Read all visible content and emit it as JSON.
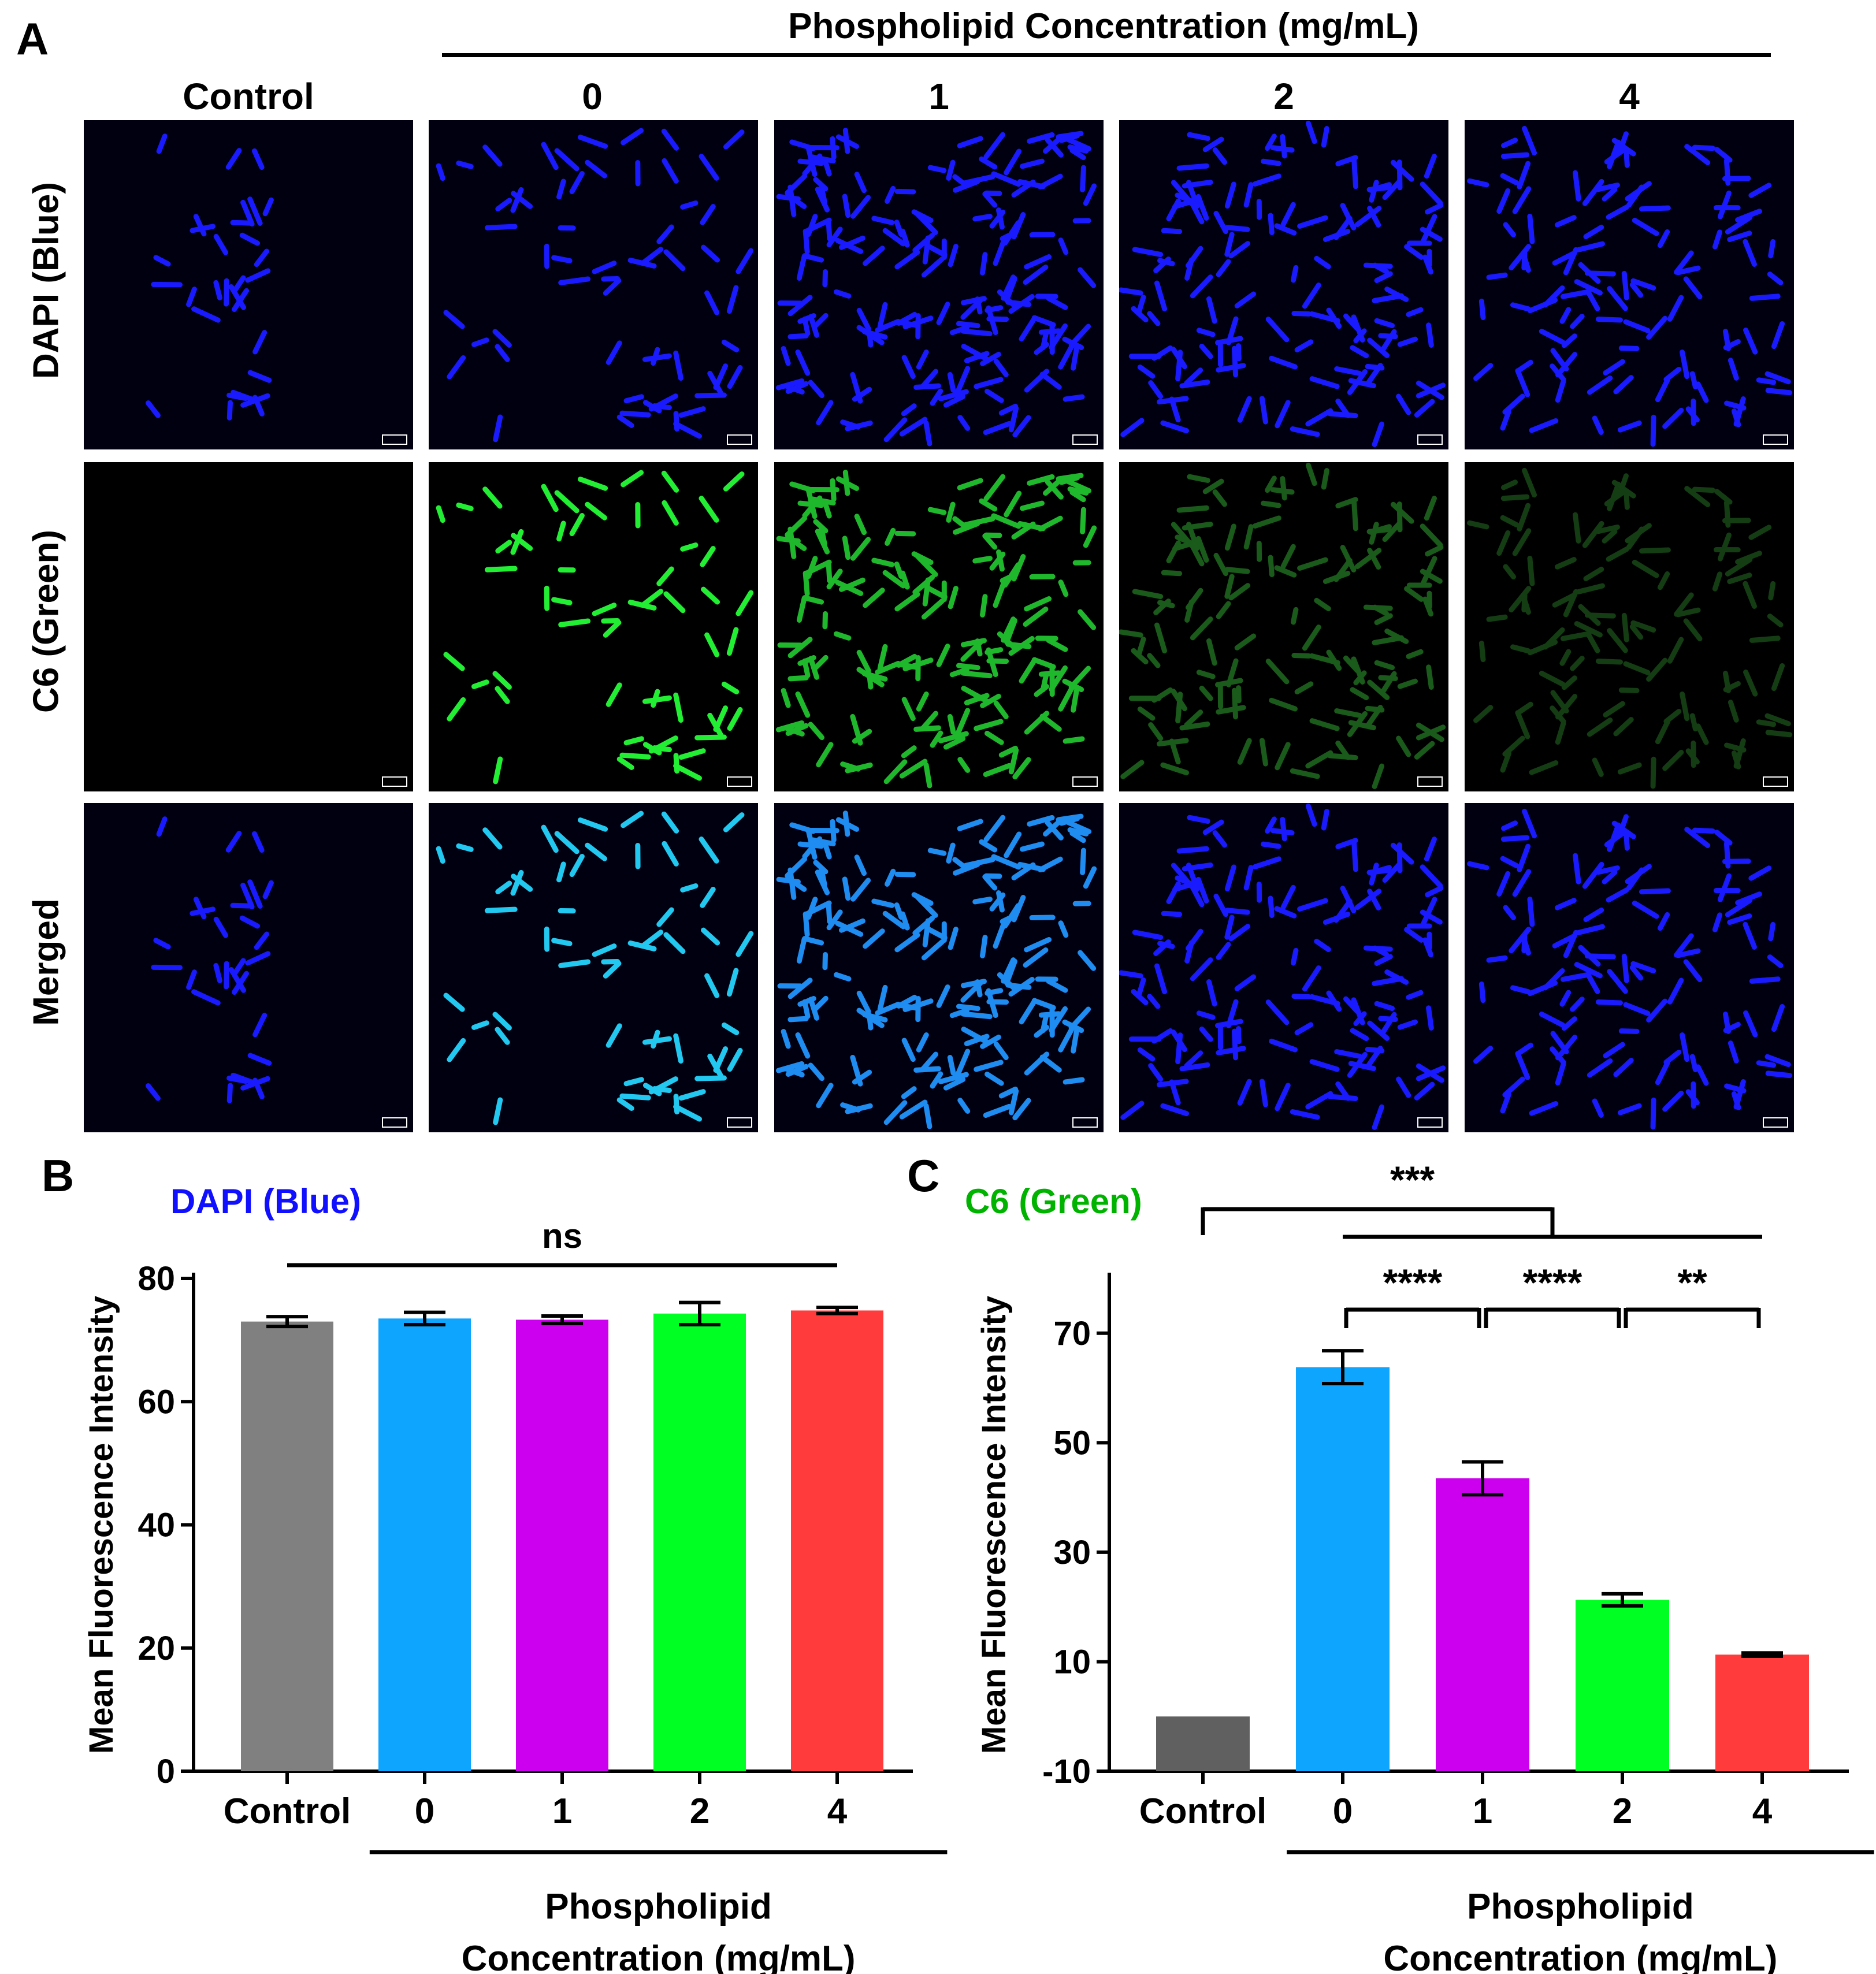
{
  "panel_labels": {
    "a": "A",
    "b": "B",
    "c": "C"
  },
  "panel_a": {
    "title": "Phospholipid Concentration (mg/mL)",
    "columns": [
      "Control",
      "0",
      "1",
      "2",
      "4"
    ],
    "rows": [
      "DAPI (Blue)",
      "C6 (Green)",
      "Merged"
    ],
    "colors": {
      "blue": "#1a1aff",
      "green": "#22dd22",
      "cyan": "#22c8f0",
      "background": "#000010"
    }
  },
  "chart_data": [
    {
      "type": "bar",
      "title": "DAPI (Blue)",
      "title_color": "#1010ff",
      "ylabel": "Mean Fluorescence Intensity",
      "xlabel": "Phospholipid Concentration (mg/mL)",
      "categories": [
        "Control",
        "0",
        "1",
        "2",
        "4"
      ],
      "values": [
        73.0,
        73.5,
        73.3,
        74.3,
        74.8
      ],
      "errors": [
        0.8,
        1.0,
        0.6,
        1.8,
        0.5
      ],
      "colors": [
        "#808080",
        "#0ea5ff",
        "#cc00ee",
        "#00ff22",
        "#ff3b3b"
      ],
      "ylim": [
        0,
        80
      ],
      "yticks": [
        0,
        20,
        40,
        60,
        80
      ],
      "significance": [
        {
          "label": "ns",
          "from": 0,
          "to": 4
        }
      ]
    },
    {
      "type": "bar",
      "title": "C6 (Green)",
      "title_color": "#00b300",
      "ylabel": "Mean Fluorescence Intensity",
      "xlabel": "Phospholipid Concentration (mg/mL)",
      "categories": [
        "Control",
        "0",
        "1",
        "2",
        "4"
      ],
      "values": [
        0,
        63.8,
        43.5,
        21.3,
        11.3
      ],
      "errors": [
        0,
        3.0,
        3.0,
        1.1,
        0.3
      ],
      "colors": [
        "#606060",
        "#0ea5ff",
        "#cc00ee",
        "#00ff22",
        "#ff3b3b"
      ],
      "ylim": [
        -10,
        80
      ],
      "yticks": [
        -10,
        10,
        30,
        50,
        70
      ],
      "significance": [
        {
          "label": "***",
          "from": 0,
          "to": 4,
          "group": true
        },
        {
          "label": "****",
          "from": 1,
          "to": 2
        },
        {
          "label": "****",
          "from": 2,
          "to": 3
        },
        {
          "label": "**",
          "from": 3,
          "to": 4
        }
      ]
    }
  ]
}
